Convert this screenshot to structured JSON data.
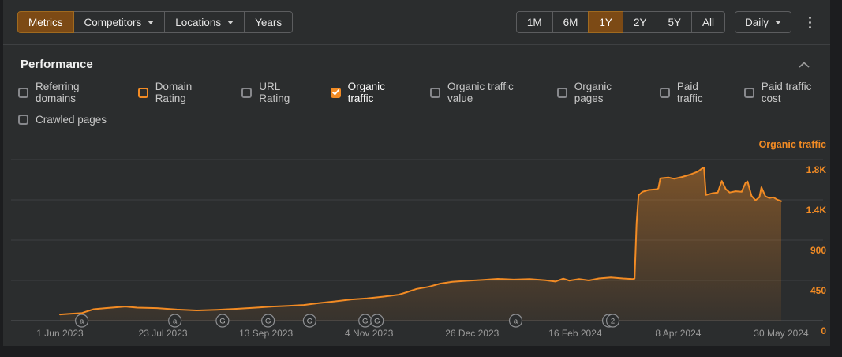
{
  "toolbar": {
    "left_tabs": [
      {
        "label": "Metrics",
        "active": true,
        "caret": false
      },
      {
        "label": "Competitors",
        "active": false,
        "caret": true
      },
      {
        "label": "Locations",
        "active": false,
        "caret": true
      },
      {
        "label": "Years",
        "active": false,
        "caret": false
      }
    ],
    "range_buttons": [
      {
        "label": "1M",
        "active": false
      },
      {
        "label": "6M",
        "active": false
      },
      {
        "label": "1Y",
        "active": true
      },
      {
        "label": "2Y",
        "active": false
      },
      {
        "label": "5Y",
        "active": false
      },
      {
        "label": "All",
        "active": false
      }
    ],
    "granularity_label": "Daily",
    "more_menu_icon": "kebab-vertical-dots"
  },
  "performance_section": {
    "title": "Performance",
    "collapse_icon": "chevron-up"
  },
  "metric_toggles": {
    "row1": [
      {
        "label": "Referring domains",
        "checked": false,
        "accent": false
      },
      {
        "label": "Domain Rating",
        "checked": false,
        "accent": true
      },
      {
        "label": "URL Rating",
        "checked": false,
        "accent": false
      },
      {
        "label": "Organic traffic",
        "checked": true,
        "accent": true
      },
      {
        "label": "Organic traffic value",
        "checked": false,
        "accent": false
      },
      {
        "label": "Organic pages",
        "checked": false,
        "accent": false
      },
      {
        "label": "Paid traffic",
        "checked": false,
        "accent": false
      },
      {
        "label": "Paid traffic cost",
        "checked": false,
        "accent": false
      }
    ],
    "row2": [
      {
        "label": "Crawled pages",
        "checked": false,
        "accent": false
      }
    ]
  },
  "colors": {
    "accent_orange": "#f28b24",
    "active_tab_bg": "#7c4a15",
    "panel_bg": "#2b2d2e",
    "gridline": "#3d3f41",
    "axis_line": "#55575a",
    "axis_text_gray": "#9b9b9b",
    "marker_ring": "#8f9093"
  },
  "chart_data": {
    "type": "area",
    "series_label": "Organic traffic",
    "legend_position": "top-right",
    "grid": true,
    "line_color": "#f28b24",
    "x_range": {
      "start": "2023-06-01",
      "end": "2024-05-30"
    },
    "y_axis": {
      "min": 0,
      "max": 1800,
      "ticks": [
        {
          "value": 1800,
          "label": "1.8K"
        },
        {
          "value": 1350,
          "label": "1.4K"
        },
        {
          "value": 900,
          "label": "900"
        },
        {
          "value": 450,
          "label": "450"
        },
        {
          "value": 0,
          "label": "0"
        }
      ]
    },
    "x_ticks": [
      {
        "d": "2023-06-01",
        "label": "1 Jun 2023"
      },
      {
        "d": "2023-07-23",
        "label": "23 Jul 2023"
      },
      {
        "d": "2023-09-13",
        "label": "13 Sep 2023"
      },
      {
        "d": "2023-11-04",
        "label": "4 Nov 2023"
      },
      {
        "d": "2023-12-26",
        "label": "26 Dec 2023"
      },
      {
        "d": "2024-02-16",
        "label": "16 Feb 2024"
      },
      {
        "d": "2024-04-08",
        "label": "8 Apr 2024"
      },
      {
        "d": "2024-05-30",
        "label": "30 May 2024"
      }
    ],
    "event_markers": [
      {
        "d": "2023-06-12",
        "label": "a",
        "double": false
      },
      {
        "d": "2023-07-29",
        "label": "a",
        "double": false
      },
      {
        "d": "2023-08-22",
        "label": "G",
        "double": false
      },
      {
        "d": "2023-09-14",
        "label": "G",
        "double": false
      },
      {
        "d": "2023-10-05",
        "label": "G",
        "double": false
      },
      {
        "d": "2023-11-02",
        "label": "G",
        "double": false
      },
      {
        "d": "2023-11-08",
        "label": "G",
        "double": false
      },
      {
        "d": "2024-01-17",
        "label": "a",
        "double": false
      },
      {
        "d": "2024-03-06",
        "label": "2",
        "double": true
      }
    ],
    "points": [
      {
        "d": "2023-06-01",
        "v": 70
      },
      {
        "d": "2023-06-06",
        "v": 78
      },
      {
        "d": "2023-06-12",
        "v": 85
      },
      {
        "d": "2023-06-14",
        "v": 100
      },
      {
        "d": "2023-06-18",
        "v": 128
      },
      {
        "d": "2023-06-24",
        "v": 140
      },
      {
        "d": "2023-07-04",
        "v": 158
      },
      {
        "d": "2023-07-10",
        "v": 146
      },
      {
        "d": "2023-07-20",
        "v": 140
      },
      {
        "d": "2023-07-30",
        "v": 124
      },
      {
        "d": "2023-08-09",
        "v": 115
      },
      {
        "d": "2023-08-19",
        "v": 122
      },
      {
        "d": "2023-08-29",
        "v": 132
      },
      {
        "d": "2023-09-08",
        "v": 146
      },
      {
        "d": "2023-09-16",
        "v": 158
      },
      {
        "d": "2023-09-24",
        "v": 165
      },
      {
        "d": "2023-10-02",
        "v": 176
      },
      {
        "d": "2023-10-10",
        "v": 198
      },
      {
        "d": "2023-10-18",
        "v": 216
      },
      {
        "d": "2023-10-26",
        "v": 237
      },
      {
        "d": "2023-11-03",
        "v": 250
      },
      {
        "d": "2023-11-11",
        "v": 268
      },
      {
        "d": "2023-11-19",
        "v": 290
      },
      {
        "d": "2023-11-23",
        "v": 318
      },
      {
        "d": "2023-11-28",
        "v": 355
      },
      {
        "d": "2023-12-04",
        "v": 378
      },
      {
        "d": "2023-12-10",
        "v": 415
      },
      {
        "d": "2023-12-16",
        "v": 435
      },
      {
        "d": "2023-12-23",
        "v": 446
      },
      {
        "d": "2023-12-31",
        "v": 455
      },
      {
        "d": "2024-01-08",
        "v": 468
      },
      {
        "d": "2024-01-16",
        "v": 460
      },
      {
        "d": "2024-01-24",
        "v": 466
      },
      {
        "d": "2024-02-01",
        "v": 452
      },
      {
        "d": "2024-02-06",
        "v": 438
      },
      {
        "d": "2024-02-10",
        "v": 470
      },
      {
        "d": "2024-02-13",
        "v": 448
      },
      {
        "d": "2024-02-18",
        "v": 466
      },
      {
        "d": "2024-02-23",
        "v": 450
      },
      {
        "d": "2024-02-28",
        "v": 472
      },
      {
        "d": "2024-03-05",
        "v": 483
      },
      {
        "d": "2024-03-11",
        "v": 472
      },
      {
        "d": "2024-03-16",
        "v": 466
      },
      {
        "d": "2024-03-17",
        "v": 470
      },
      {
        "d": "2024-03-18",
        "v": 1085
      },
      {
        "d": "2024-03-19",
        "v": 1400
      },
      {
        "d": "2024-03-21",
        "v": 1440
      },
      {
        "d": "2024-03-24",
        "v": 1460
      },
      {
        "d": "2024-03-28",
        "v": 1468
      },
      {
        "d": "2024-03-29",
        "v": 1478
      },
      {
        "d": "2024-03-30",
        "v": 1590
      },
      {
        "d": "2024-04-03",
        "v": 1600
      },
      {
        "d": "2024-04-06",
        "v": 1586
      },
      {
        "d": "2024-04-10",
        "v": 1606
      },
      {
        "d": "2024-04-14",
        "v": 1632
      },
      {
        "d": "2024-04-18",
        "v": 1666
      },
      {
        "d": "2024-04-20",
        "v": 1700
      },
      {
        "d": "2024-04-21",
        "v": 1712
      },
      {
        "d": "2024-04-22",
        "v": 1405
      },
      {
        "d": "2024-04-25",
        "v": 1422
      },
      {
        "d": "2024-04-28",
        "v": 1432
      },
      {
        "d": "2024-04-30",
        "v": 1560
      },
      {
        "d": "2024-05-02",
        "v": 1470
      },
      {
        "d": "2024-05-04",
        "v": 1432
      },
      {
        "d": "2024-05-07",
        "v": 1446
      },
      {
        "d": "2024-05-10",
        "v": 1440
      },
      {
        "d": "2024-05-12",
        "v": 1540
      },
      {
        "d": "2024-05-13",
        "v": 1556
      },
      {
        "d": "2024-05-15",
        "v": 1395
      },
      {
        "d": "2024-05-17",
        "v": 1345
      },
      {
        "d": "2024-05-19",
        "v": 1380
      },
      {
        "d": "2024-05-20",
        "v": 1490
      },
      {
        "d": "2024-05-22",
        "v": 1390
      },
      {
        "d": "2024-05-24",
        "v": 1370
      },
      {
        "d": "2024-05-26",
        "v": 1378
      },
      {
        "d": "2024-05-28",
        "v": 1352
      },
      {
        "d": "2024-05-30",
        "v": 1335
      }
    ]
  }
}
